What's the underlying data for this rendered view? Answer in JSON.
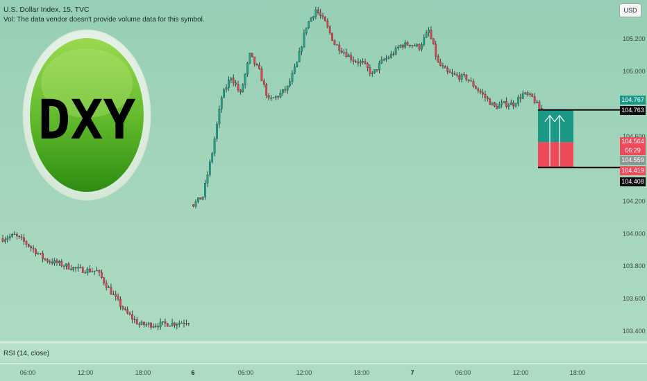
{
  "header": {
    "title": "U.S. Dollar Index, 15, TVC",
    "vol_note": "Vol: The data vendor doesn't provide volume data for this symbol."
  },
  "currency_button": "USD",
  "logo": {
    "text": "DXY",
    "colors": {
      "outer": "#e9f2ea",
      "green_top": "#8ed24a",
      "green_bottom": "#2f8f14",
      "text": "#000000"
    }
  },
  "rsi_label": "RSI (14, close)",
  "price_tags": [
    {
      "label": "104.767",
      "price": 104.767,
      "bg": "#1a9a86"
    },
    {
      "label": "104.763",
      "price": 104.763,
      "bg": "#0b0b0b"
    },
    {
      "label": "104.564",
      "price": 104.564,
      "bg": "#ef4a5a"
    },
    {
      "label": "06:29",
      "price": 104.564,
      "bg": "#ef4a5a",
      "role": "countdown"
    },
    {
      "label": "104.559",
      "price": 104.539,
      "bg": "#8a9893"
    },
    {
      "label": "104.419",
      "price": 104.419,
      "bg": "#ef4a5a"
    },
    {
      "label": "104.408",
      "price": 104.408,
      "bg": "#0b0b0b"
    }
  ],
  "chart_data": {
    "type": "candlestick",
    "symbol": "U.S. Dollar Index",
    "interval": "15",
    "source": "TVC",
    "y_range": [
      103.34,
      105.44
    ],
    "y_ticks": [
      103.4,
      103.6,
      103.8,
      104.0,
      104.2,
      104.4,
      104.6,
      105.0,
      105.2
    ],
    "y_tick_labels": [
      "103.400",
      "103.600",
      "103.800",
      "104.000",
      "104.200",
      "",
      "104.600",
      "105.000",
      "105.200"
    ],
    "x_ticks": [
      {
        "label": "06:00",
        "bold": false
      },
      {
        "label": "12:00",
        "bold": false
      },
      {
        "label": "18:00",
        "bold": false
      },
      {
        "label": "6",
        "bold": true
      },
      {
        "label": "06:00",
        "bold": false
      },
      {
        "label": "12:00",
        "bold": false
      },
      {
        "label": "18:00",
        "bold": false
      },
      {
        "label": "7",
        "bold": true
      },
      {
        "label": "06:00",
        "bold": false
      },
      {
        "label": "12:00",
        "bold": false
      },
      {
        "label": "18:00",
        "bold": false
      }
    ],
    "colors": {
      "up": "#1aa78c",
      "down": "#f23c4e",
      "wick": "#222222"
    },
    "segments": [
      {
        "name": "day-1",
        "start_bar": 0,
        "points": [
          [
            0,
            103.97
          ],
          [
            5,
            103.99
          ],
          [
            10,
            103.94
          ],
          [
            18,
            103.84
          ],
          [
            25,
            103.81
          ],
          [
            32,
            103.78
          ],
          [
            40,
            103.77
          ],
          [
            46,
            103.64
          ],
          [
            52,
            103.52
          ],
          [
            58,
            103.44
          ],
          [
            66,
            103.44
          ],
          [
            74,
            103.45
          ],
          [
            79,
            103.46
          ]
        ]
      },
      {
        "name": "day-2",
        "start_bar": 81,
        "points": [
          [
            0,
            104.18
          ],
          [
            4,
            104.23
          ],
          [
            8,
            104.5
          ],
          [
            12,
            104.84
          ],
          [
            16,
            104.97
          ],
          [
            20,
            104.86
          ],
          [
            24,
            105.1
          ],
          [
            28,
            105.0
          ],
          [
            32,
            104.82
          ],
          [
            36,
            104.85
          ],
          [
            40,
            104.9
          ],
          [
            44,
            105.05
          ],
          [
            48,
            105.28
          ],
          [
            52,
            105.38
          ],
          [
            56,
            105.3
          ],
          [
            60,
            105.17
          ],
          [
            64,
            105.12
          ],
          [
            68,
            105.07
          ],
          [
            72,
            105.05
          ],
          [
            76,
            104.98
          ],
          [
            80,
            105.06
          ],
          [
            84,
            105.1
          ],
          [
            88,
            105.16
          ],
          [
            92,
            105.17
          ],
          [
            96,
            105.15
          ],
          [
            100,
            105.25
          ],
          [
            104,
            105.05
          ],
          [
            108,
            104.99
          ],
          [
            112,
            104.97
          ],
          [
            116,
            104.96
          ],
          [
            120,
            104.9
          ],
          [
            124,
            104.84
          ],
          [
            128,
            104.78
          ],
          [
            132,
            104.8
          ],
          [
            136,
            104.8
          ],
          [
            140,
            104.86
          ],
          [
            144,
            104.84
          ],
          [
            148,
            104.75
          ],
          [
            152,
            104.62
          ],
          [
            154,
            104.56
          ],
          [
            156,
            104.564
          ]
        ]
      }
    ],
    "long_position": {
      "entry": 104.564,
      "target": 104.763,
      "stop": 104.408,
      "target_label": "104.763",
      "stop_label": "104.408",
      "colors": {
        "profit": "#1a9a86",
        "loss": "#ef4a5a"
      }
    },
    "last_price": 104.564,
    "countdown": "06:29"
  }
}
